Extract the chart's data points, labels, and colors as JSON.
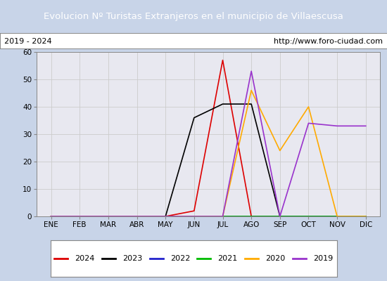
{
  "title": "Evolucion Nº Turistas Extranjeros en el municipio de Villaescusa",
  "subtitle_left": "2019 - 2024",
  "subtitle_right": "http://www.foro-ciudad.com",
  "title_bg_color": "#4472c4",
  "title_text_color": "#ffffff",
  "outer_bg_color": "#c8d4e8",
  "plot_bg_color": "#e8e8f0",
  "grid_color": "#cccccc",
  "months": [
    "ENE",
    "FEB",
    "MAR",
    "ABR",
    "MAY",
    "JUN",
    "JUL",
    "AGO",
    "SEP",
    "OCT",
    "NOV",
    "DIC"
  ],
  "ylim": [
    0,
    60
  ],
  "yticks": [
    0,
    10,
    20,
    30,
    40,
    50,
    60
  ],
  "series": {
    "2024": {
      "color": "#dd0000",
      "data": [
        0,
        0,
        0,
        0,
        0,
        2,
        57,
        0,
        0,
        0,
        0,
        0
      ]
    },
    "2023": {
      "color": "#000000",
      "data": [
        0,
        0,
        0,
        0,
        0,
        36,
        41,
        41,
        0,
        0,
        0,
        0
      ]
    },
    "2022": {
      "color": "#2222cc",
      "data": [
        0,
        0,
        0,
        0,
        0,
        0,
        0,
        0,
        0,
        0,
        0,
        0
      ]
    },
    "2021": {
      "color": "#00bb00",
      "data": [
        0,
        0,
        0,
        0,
        0,
        0,
        0,
        0,
        0,
        0,
        0,
        0
      ]
    },
    "2020": {
      "color": "#ffaa00",
      "data": [
        0,
        0,
        0,
        0,
        0,
        0,
        0,
        46,
        24,
        40,
        0,
        0
      ]
    },
    "2019": {
      "color": "#9933cc",
      "data": [
        0,
        0,
        0,
        0,
        0,
        0,
        0,
        53,
        0,
        34,
        33,
        33
      ]
    }
  },
  "legend_order": [
    "2024",
    "2023",
    "2022",
    "2021",
    "2020",
    "2019"
  ]
}
